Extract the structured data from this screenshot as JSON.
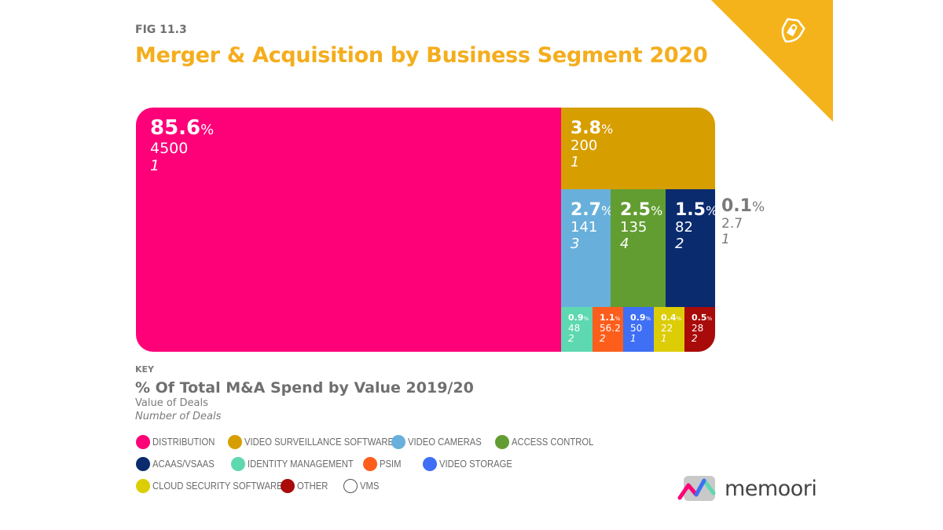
{
  "figure": {
    "label": "FIG 11.3",
    "title": "Merger & Acquisition by Business Segment 2020",
    "corner_badge": "SECURITY",
    "corner_icon": "shield-lock-icon",
    "brand": "memoori"
  },
  "key": {
    "label": "KEY",
    "heading": "% Of Total M&A Spend by Value 2019/20",
    "value_line": "Value of Deals",
    "count_line": "Number of Deals"
  },
  "chart_data": {
    "type": "treemap",
    "title": "Merger & Acquisition by Business Segment 2020",
    "subtitle": "% Of Total M&A Spend by Value 2019/20",
    "segments": [
      {
        "name": "DISTRIBUTION",
        "percent": "85.6",
        "value": "4500",
        "deals": "1",
        "color": "#fe0078"
      },
      {
        "name": "VIDEO SURVEILLANCE SOFTWARE",
        "percent": "3.8",
        "value": "200",
        "deals": "1",
        "color": "#d79e00"
      },
      {
        "name": "VIDEO CAMERAS",
        "percent": "2.7",
        "value": "141",
        "deals": "3",
        "color": "#68b0db"
      },
      {
        "name": "ACCESS CONTROL",
        "percent": "2.5",
        "value": "135",
        "deals": "4",
        "color": "#629d31"
      },
      {
        "name": "ACAAS/VSAAS",
        "percent": "1.5",
        "value": "82",
        "deals": "2",
        "color": "#0a2b6e"
      },
      {
        "name": "IDENTITY MANAGEMENT",
        "percent": "0.9",
        "value": "48",
        "deals": "2",
        "color": "#5ed8b0"
      },
      {
        "name": "PSIM",
        "percent": "1.1",
        "value": "56.2",
        "deals": "2",
        "color": "#fd5e1c"
      },
      {
        "name": "VIDEO STORAGE",
        "percent": "0.9",
        "value": "50",
        "deals": "1",
        "color": "#3e6ff5"
      },
      {
        "name": "CLOUD SECURITY SOFTWARE",
        "percent": "0.4",
        "value": "22",
        "deals": "1",
        "color": "#dccd06"
      },
      {
        "name": "OTHER",
        "percent": "0.5",
        "value": "28",
        "deals": "2",
        "color": "#a90a0a"
      },
      {
        "name": "VMS",
        "percent": "0.1",
        "value": "2.7",
        "deals": "1",
        "color": "#ffffff"
      }
    ],
    "percent_symbol": "%"
  },
  "legend": [
    {
      "label": "DISTRIBUTION",
      "color": "#fe0078"
    },
    {
      "label": "VIDEO SURVEILLANCE SOFTWARE",
      "color": "#d79e00"
    },
    {
      "label": "VIDEO CAMERAS",
      "color": "#68b0db"
    },
    {
      "label": "ACCESS CONTROL",
      "color": "#629d31"
    },
    {
      "label": "ACAAS/VSAAS",
      "color": "#0a2b6e"
    },
    {
      "label": "IDENTITY MANAGEMENT",
      "color": "#5ed8b0"
    },
    {
      "label": "PSIM",
      "color": "#fd5e1c"
    },
    {
      "label": "VIDEO STORAGE",
      "color": "#3e6ff5"
    },
    {
      "label": "CLOUD SECURITY SOFTWARE",
      "color": "#dccd06"
    },
    {
      "label": "OTHER",
      "color": "#a90a0a"
    },
    {
      "label": "VMS",
      "color": "#ffffff"
    }
  ]
}
